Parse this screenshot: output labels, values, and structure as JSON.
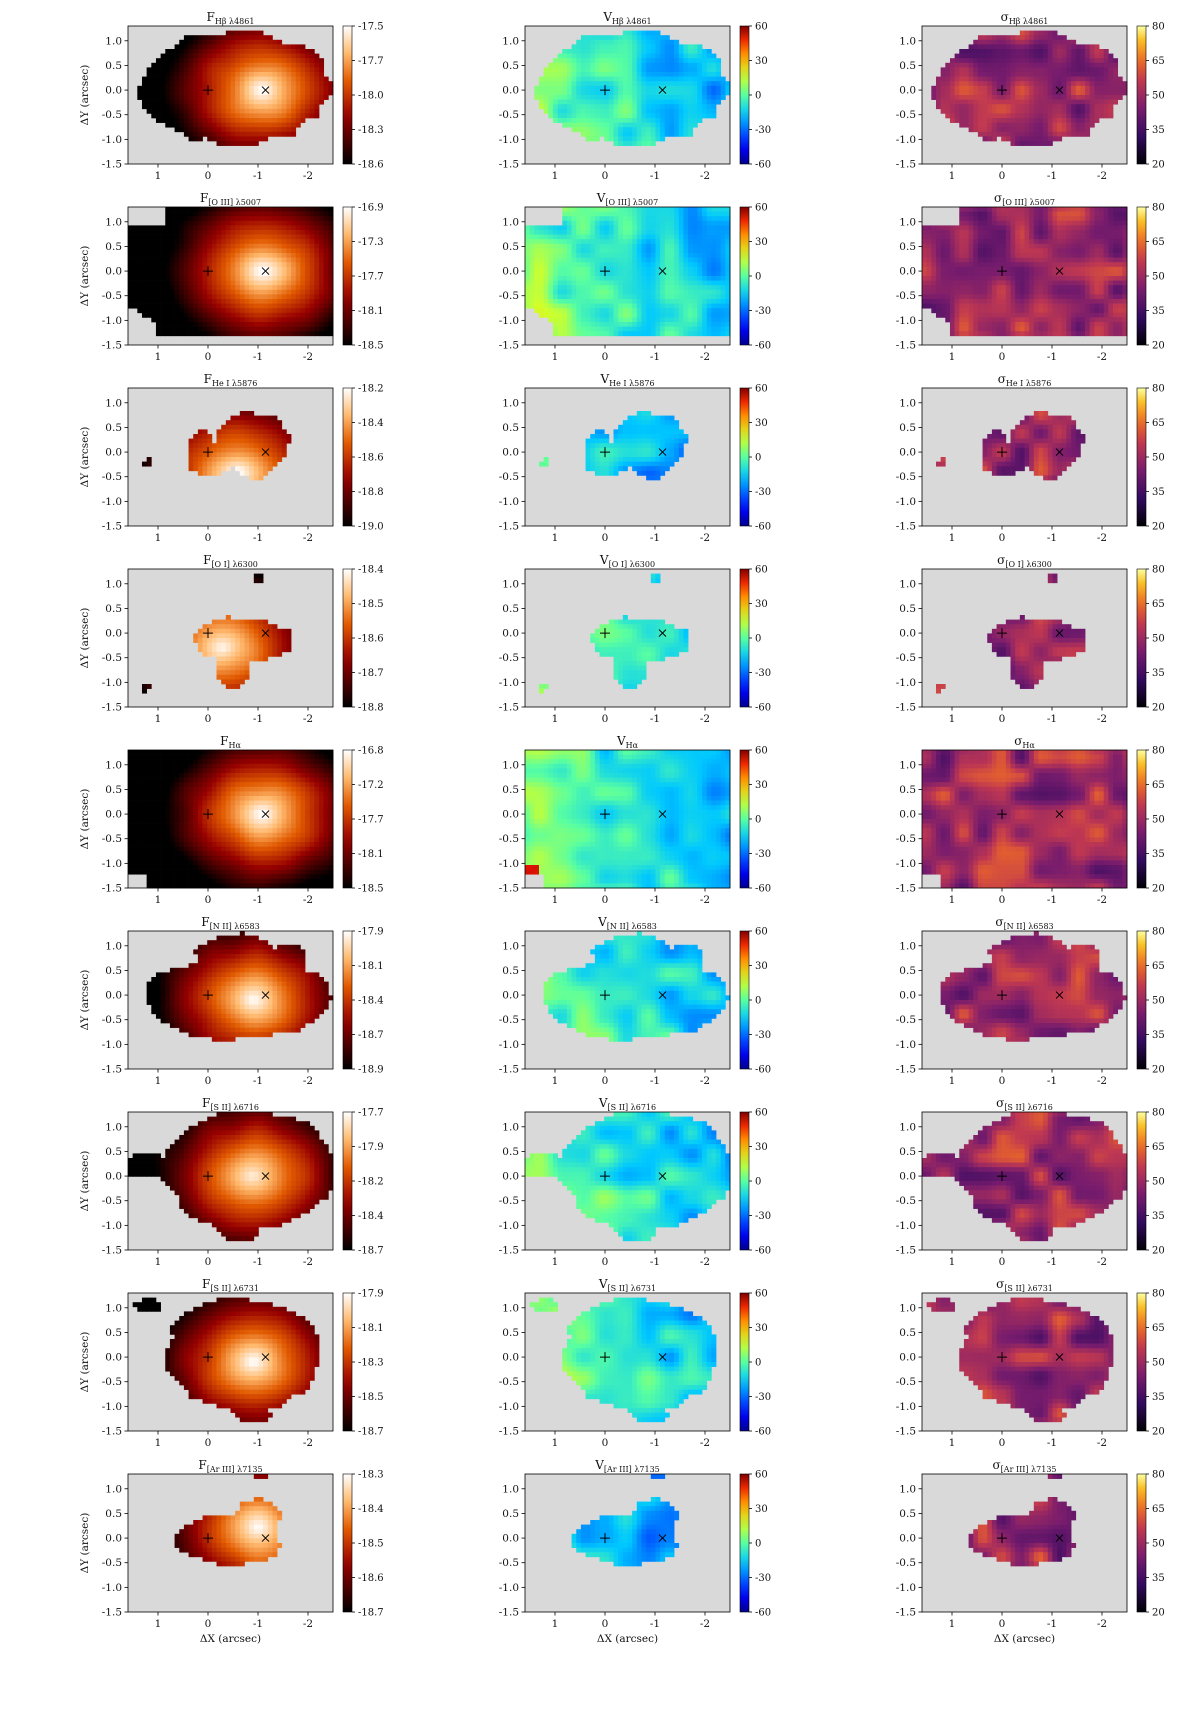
{
  "figure": {
    "type": "heatmap-grid",
    "rows": 9,
    "cols": 3,
    "markers": {
      "center_plus": [
        0.0,
        0.0
      ],
      "center_x": [
        -1.15,
        0.0
      ]
    },
    "x_axis": {
      "label": "ΔX (arcsec)",
      "ticks": [
        1,
        0,
        -1,
        -2
      ],
      "range": [
        1.6,
        -2.5
      ]
    },
    "y_axis": {
      "label": "ΔY (arcsec)",
      "ticks": [
        1.0,
        0.5,
        0.0,
        -0.5,
        -1.0,
        -1.5
      ],
      "range": [
        -1.5,
        1.3
      ]
    }
  },
  "chart_data": [
    {
      "type": "heatmap",
      "quantity": "flux",
      "line": "Hβ λ4861",
      "title_main": "F",
      "title_sub": "Hβ λ4861",
      "colormap": "gist_heat",
      "colorbar_ticks": [
        "-17.5",
        "-17.7",
        "-18.0",
        "-18.3",
        "-18.6"
      ],
      "vmin": -18.6,
      "vmax": -17.5,
      "mask": 1,
      "peak": [
        -1.1,
        0.0
      ],
      "pattern": "flux"
    },
    {
      "type": "heatmap",
      "quantity": "velocity",
      "line": "Hβ λ4861",
      "title_main": "V",
      "title_sub": "Hβ λ4861",
      "colormap": "jet",
      "colorbar_ticks": [
        "60",
        "30",
        "0",
        "-30",
        "-60"
      ],
      "vmin": -60,
      "vmax": 60,
      "mask": 1,
      "pattern": "vel"
    },
    {
      "type": "heatmap",
      "quantity": "sigma",
      "line": "Hβ λ4861",
      "title_main": "σ",
      "title_sub": "Hβ λ4861",
      "colormap": "inferno",
      "colorbar_ticks": [
        "80",
        "65",
        "50",
        "35",
        "20"
      ],
      "vmin": 20,
      "vmax": 80,
      "mask": 1,
      "pattern": "sig"
    },
    {
      "type": "heatmap",
      "quantity": "flux",
      "line": "[O III] λ5007",
      "title_main": "F",
      "title_sub": "[O III] λ5007",
      "colormap": "gist_heat",
      "colorbar_ticks": [
        "-16.9",
        "-17.3",
        "-17.7",
        "-18.1",
        "-18.5"
      ],
      "vmin": -18.5,
      "vmax": -16.9,
      "mask": 2,
      "peak": [
        -1.1,
        0.0
      ],
      "pattern": "flux"
    },
    {
      "type": "heatmap",
      "quantity": "velocity",
      "line": "[O III] λ5007",
      "title_main": "V",
      "title_sub": "[O III] λ5007",
      "colormap": "jet",
      "colorbar_ticks": [
        "60",
        "30",
        "0",
        "-30",
        "-60"
      ],
      "vmin": -60,
      "vmax": 60,
      "mask": 2,
      "pattern": "vel"
    },
    {
      "type": "heatmap",
      "quantity": "sigma",
      "line": "[O III] λ5007",
      "title_main": "σ",
      "title_sub": "[O III] λ5007",
      "colormap": "inferno",
      "colorbar_ticks": [
        "80",
        "65",
        "50",
        "35",
        "20"
      ],
      "vmin": 20,
      "vmax": 80,
      "mask": 2,
      "pattern": "sig"
    },
    {
      "type": "heatmap",
      "quantity": "flux",
      "line": "He I λ5876",
      "title_main": "F",
      "title_sub": "He I λ5876",
      "colormap": "gist_heat",
      "colorbar_ticks": [
        "-18.2",
        "-18.4",
        "-18.6",
        "-18.8",
        "-19.0"
      ],
      "vmin": -19.0,
      "vmax": -18.2,
      "mask": 3,
      "peak": [
        -0.6,
        -0.4
      ],
      "pattern": "flux"
    },
    {
      "type": "heatmap",
      "quantity": "velocity",
      "line": "He I λ5876",
      "title_main": "V",
      "title_sub": "He I λ5876",
      "colormap": "jet",
      "colorbar_ticks": [
        "60",
        "30",
        "0",
        "-30",
        "-60"
      ],
      "vmin": -60,
      "vmax": 60,
      "mask": 3,
      "pattern": "velblue"
    },
    {
      "type": "heatmap",
      "quantity": "sigma",
      "line": "He I λ5876",
      "title_main": "σ",
      "title_sub": "He I λ5876",
      "colormap": "inferno",
      "colorbar_ticks": [
        "80",
        "65",
        "50",
        "35",
        "20"
      ],
      "vmin": 20,
      "vmax": 80,
      "mask": 3,
      "pattern": "sig"
    },
    {
      "type": "heatmap",
      "quantity": "flux",
      "line": "[O I] λ6300",
      "title_main": "F",
      "title_sub": "[O I] λ6300",
      "colormap": "gist_heat",
      "colorbar_ticks": [
        "-18.4",
        "-18.5",
        "-18.6",
        "-18.7",
        "-18.8"
      ],
      "vmin": -18.8,
      "vmax": -18.4,
      "mask": 4,
      "peak": [
        -0.3,
        -0.3
      ],
      "pattern": "flux"
    },
    {
      "type": "heatmap",
      "quantity": "velocity",
      "line": "[O I] λ6300",
      "title_main": "V",
      "title_sub": "[O I] λ6300",
      "colormap": "jet",
      "colorbar_ticks": [
        "60",
        "30",
        "0",
        "-30",
        "-60"
      ],
      "vmin": -60,
      "vmax": 60,
      "mask": 4,
      "pattern": "vel"
    },
    {
      "type": "heatmap",
      "quantity": "sigma",
      "line": "[O I] λ6300",
      "title_main": "σ",
      "title_sub": "[O I] λ6300",
      "colormap": "inferno",
      "colorbar_ticks": [
        "80",
        "65",
        "50",
        "35",
        "20"
      ],
      "vmin": 20,
      "vmax": 80,
      "mask": 4,
      "pattern": "sig"
    },
    {
      "type": "heatmap",
      "quantity": "flux",
      "line": "Hα",
      "title_main": "F",
      "title_sub": "Hα",
      "colormap": "gist_heat",
      "colorbar_ticks": [
        "-16.8",
        "-17.2",
        "-17.7",
        "-18.1",
        "-18.5"
      ],
      "vmin": -18.5,
      "vmax": -16.8,
      "mask": 5,
      "peak": [
        -1.1,
        0.0
      ],
      "pattern": "flux"
    },
    {
      "type": "heatmap",
      "quantity": "velocity",
      "line": "Hα",
      "title_main": "V",
      "title_sub": "Hα",
      "colormap": "jet",
      "colorbar_ticks": [
        "60",
        "30",
        "0",
        "-30",
        "-60"
      ],
      "vmin": -60,
      "vmax": 60,
      "mask": 5,
      "pattern": "vel"
    },
    {
      "type": "heatmap",
      "quantity": "sigma",
      "line": "Hα",
      "title_main": "σ",
      "title_sub": "Hα",
      "colormap": "inferno",
      "colorbar_ticks": [
        "80",
        "65",
        "50",
        "35",
        "20"
      ],
      "vmin": 20,
      "vmax": 80,
      "mask": 5,
      "pattern": "sig"
    },
    {
      "type": "heatmap",
      "quantity": "flux",
      "line": "[N II] λ6583",
      "title_main": "F",
      "title_sub": "[N II] λ6583",
      "colormap": "gist_heat",
      "colorbar_ticks": [
        "-17.9",
        "-18.1",
        "-18.4",
        "-18.7",
        "-18.9"
      ],
      "vmin": -18.9,
      "vmax": -17.9,
      "mask": 6,
      "peak": [
        -0.9,
        -0.1
      ],
      "pattern": "flux"
    },
    {
      "type": "heatmap",
      "quantity": "velocity",
      "line": "[N II] λ6583",
      "title_main": "V",
      "title_sub": "[N II] λ6583",
      "colormap": "jet",
      "colorbar_ticks": [
        "60",
        "30",
        "0",
        "-30",
        "-60"
      ],
      "vmin": -60,
      "vmax": 60,
      "mask": 6,
      "pattern": "vel"
    },
    {
      "type": "heatmap",
      "quantity": "sigma",
      "line": "[N II] λ6583",
      "title_main": "σ",
      "title_sub": "[N II] λ6583",
      "colormap": "inferno",
      "colorbar_ticks": [
        "80",
        "65",
        "50",
        "35",
        "20"
      ],
      "vmin": 20,
      "vmax": 80,
      "mask": 6,
      "pattern": "sig"
    },
    {
      "type": "heatmap",
      "quantity": "flux",
      "line": "[S II] λ6716",
      "title_main": "F",
      "title_sub": "[S II] λ6716",
      "colormap": "gist_heat",
      "colorbar_ticks": [
        "-17.7",
        "-17.9",
        "-18.2",
        "-18.4",
        "-18.7"
      ],
      "vmin": -18.7,
      "vmax": -17.7,
      "mask": 7,
      "peak": [
        -0.9,
        0.0
      ],
      "pattern": "flux"
    },
    {
      "type": "heatmap",
      "quantity": "velocity",
      "line": "[S II] λ6716",
      "title_main": "V",
      "title_sub": "[S II] λ6716",
      "colormap": "jet",
      "colorbar_ticks": [
        "60",
        "30",
        "0",
        "-30",
        "-60"
      ],
      "vmin": -60,
      "vmax": 60,
      "mask": 7,
      "pattern": "vel"
    },
    {
      "type": "heatmap",
      "quantity": "sigma",
      "line": "[S II] λ6716",
      "title_main": "σ",
      "title_sub": "[S II] λ6716",
      "colormap": "inferno",
      "colorbar_ticks": [
        "80",
        "65",
        "50",
        "35",
        "20"
      ],
      "vmin": 20,
      "vmax": 80,
      "mask": 7,
      "pattern": "sig"
    },
    {
      "type": "heatmap",
      "quantity": "flux",
      "line": "[S II] λ6731",
      "title_main": "F",
      "title_sub": "[S II] λ6731",
      "colormap": "gist_heat",
      "colorbar_ticks": [
        "-17.9",
        "-18.1",
        "-18.3",
        "-18.5",
        "-18.7"
      ],
      "vmin": -18.7,
      "vmax": -17.9,
      "mask": 8,
      "peak": [
        -0.9,
        -0.1
      ],
      "pattern": "flux"
    },
    {
      "type": "heatmap",
      "quantity": "velocity",
      "line": "[S II] λ6731",
      "title_main": "V",
      "title_sub": "[S II] λ6731",
      "colormap": "jet",
      "colorbar_ticks": [
        "60",
        "30",
        "0",
        "-30",
        "-60"
      ],
      "vmin": -60,
      "vmax": 60,
      "mask": 8,
      "pattern": "vel"
    },
    {
      "type": "heatmap",
      "quantity": "sigma",
      "line": "[S II] λ6731",
      "title_main": "σ",
      "title_sub": "[S II] λ6731",
      "colormap": "inferno",
      "colorbar_ticks": [
        "80",
        "65",
        "50",
        "35",
        "20"
      ],
      "vmin": 20,
      "vmax": 80,
      "mask": 8,
      "pattern": "sig"
    },
    {
      "type": "heatmap",
      "quantity": "flux",
      "line": "[Ar III] λ7135",
      "title_main": "F",
      "title_sub": "[Ar III] λ7135",
      "colormap": "gist_heat",
      "colorbar_ticks": [
        "-18.3",
        "-18.4",
        "-18.5",
        "-18.6",
        "-18.7"
      ],
      "vmin": -18.7,
      "vmax": -18.3,
      "mask": 9,
      "peak": [
        -1.0,
        0.2
      ],
      "pattern": "flux"
    },
    {
      "type": "heatmap",
      "quantity": "velocity",
      "line": "[Ar III] λ7135",
      "title_main": "V",
      "title_sub": "[Ar III] λ7135",
      "colormap": "jet",
      "colorbar_ticks": [
        "60",
        "30",
        "0",
        "-30",
        "-60"
      ],
      "vmin": -60,
      "vmax": 60,
      "mask": 9,
      "pattern": "velblue"
    },
    {
      "type": "heatmap",
      "quantity": "sigma",
      "line": "[Ar III] λ7135",
      "title_main": "σ",
      "title_sub": "[Ar III] λ7135",
      "colormap": "inferno",
      "colorbar_ticks": [
        "80",
        "65",
        "50",
        "35",
        "20"
      ],
      "vmin": 20,
      "vmax": 80,
      "mask": 9,
      "pattern": "sig"
    }
  ]
}
